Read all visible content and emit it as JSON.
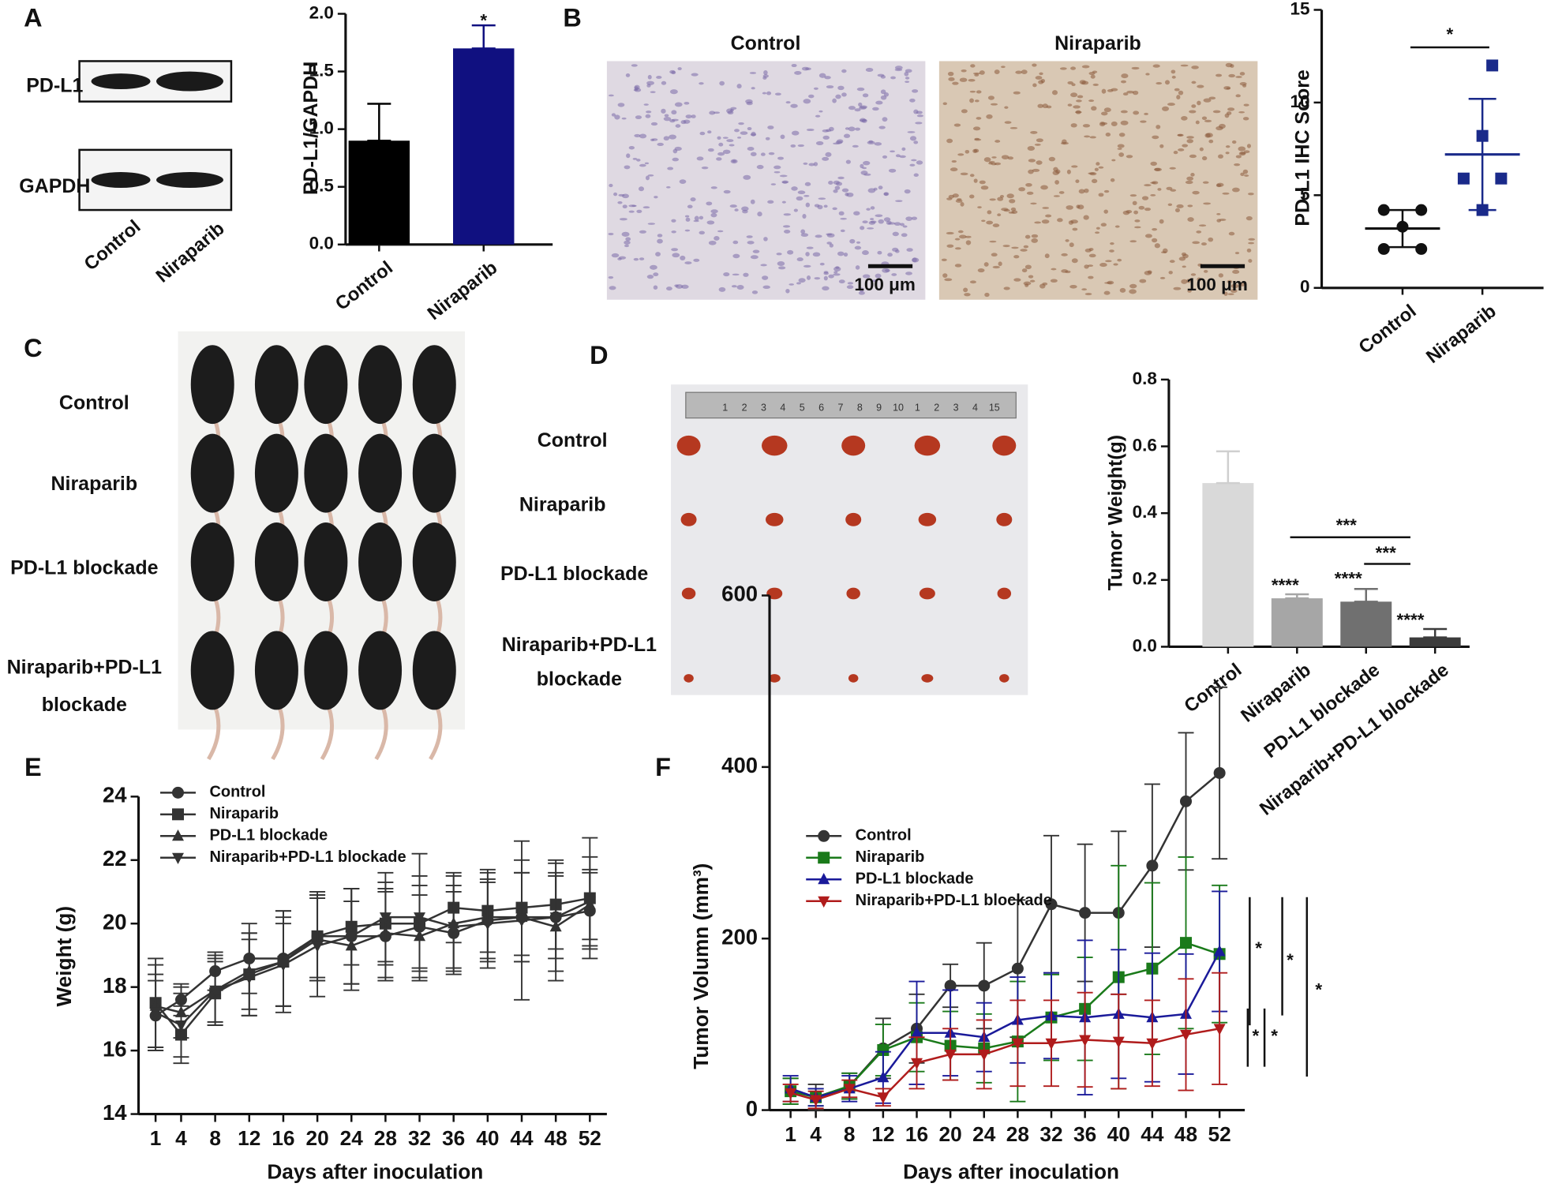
{
  "chart_data": [
    {
      "type": "bar",
      "categories": [
        "Control",
        "Niraparib"
      ],
      "values": [
        0.9,
        1.7
      ],
      "errors": [
        0.32,
        0.2
      ],
      "colors": [
        "#000000",
        "#101080"
      ],
      "y_label": "PD-L1/GAPDH",
      "ylim": [
        0,
        2
      ],
      "yticks": [
        {
          "value": 0,
          "label": "0.0"
        },
        0.5,
        {
          "value": 1,
          "label": "1.0"
        },
        1.5,
        {
          "value": 2,
          "label": "2.0"
        }
      ],
      "annotations": [
        "*"
      ]
    },
    {
      "type": "dot",
      "categories": [
        "Control",
        "Niraparib"
      ],
      "points": [
        [
          4.2,
          4.2,
          3.3,
          2.1,
          2.1
        ],
        [
          12,
          8.2,
          5.9,
          5.9,
          4.2
        ]
      ],
      "means": [
        3.2,
        7.2
      ],
      "sds": [
        1.0,
        3.0
      ],
      "colors": [
        "#111111",
        "#1a2a8a"
      ],
      "markers": [
        "circle",
        "square"
      ],
      "y_label": "PD-L1 IHC Score",
      "ylim": [
        0,
        15
      ],
      "yticks": [
        0,
        5,
        10,
        15
      ],
      "annotations": [
        "*"
      ]
    },
    {
      "type": "bar",
      "categories": [
        "Control",
        "Niraparib",
        "PD-L1 blockade",
        "Niraparib+PD-L1 blockade"
      ],
      "values": [
        0.49,
        0.145,
        0.135,
        0.028
      ],
      "errors": [
        0.095,
        0.012,
        0.038,
        0.025
      ],
      "colors": [
        "#d9d9d9",
        "#a6a6a6",
        "#707070",
        "#3c3c3c"
      ],
      "y_label": "Tumor Weight(g)",
      "ylim": [
        0,
        0.8
      ],
      "yticks": [
        {
          "value": 0,
          "label": "0.0"
        },
        0.2,
        0.4,
        0.6,
        0.8
      ],
      "annotations": [
        "****",
        "****",
        "****",
        "***",
        "***"
      ]
    },
    {
      "type": "line",
      "x": [
        1,
        4,
        8,
        12,
        16,
        20,
        24,
        28,
        32,
        36,
        40,
        44,
        48,
        52
      ],
      "xticks": [
        1,
        4,
        8,
        12,
        16,
        20,
        24,
        28,
        32,
        36,
        40,
        44,
        48,
        52
      ],
      "xlim": [
        -1,
        54
      ],
      "x_label": "Days after inoculation",
      "y_label": "Weight (g)",
      "ylim": [
        14,
        24
      ],
      "yticks": [
        14,
        16,
        18,
        20,
        22,
        24
      ],
      "series": [
        {
          "name": "Control",
          "color": "#333333",
          "marker": "circle",
          "values": [
            17.1,
            17.6,
            18.5,
            18.9,
            18.9,
            19.6,
            19.6,
            19.6,
            19.9,
            19.7,
            20.1,
            20.2,
            20.2,
            20.4
          ],
          "errors": [
            1.1,
            0.5,
            0.6,
            1.1,
            1.5,
            1.3,
            1.5,
            1.4,
            1.3,
            1.3,
            1.2,
            1.4,
            1.3,
            1.2
          ]
        },
        {
          "name": "Niraparib",
          "color": "#333333",
          "marker": "square",
          "values": [
            17.5,
            16.5,
            17.8,
            18.4,
            18.8,
            19.6,
            19.9,
            20.0,
            20.0,
            20.5,
            20.4,
            20.5,
            20.6,
            20.8
          ],
          "errors": [
            1.4,
            0.9,
            1.0,
            1.3,
            1.6,
            1.4,
            1.2,
            1.3,
            1.5,
            1.1,
            1.3,
            1.5,
            1.4,
            1.9
          ]
        },
        {
          "name": "PD-L1 blockade",
          "color": "#333333",
          "marker": "triangle",
          "values": [
            17.4,
            17.2,
            17.9,
            18.5,
            18.8,
            19.5,
            19.3,
            19.7,
            19.6,
            20.0,
            20.2,
            20.2,
            19.9,
            20.6
          ],
          "errors": [
            1.3,
            0.8,
            1.0,
            1.2,
            1.4,
            1.3,
            1.4,
            1.4,
            1.3,
            1.5,
            1.4,
            1.4,
            1.7,
            1.1
          ]
        },
        {
          "name": "Niraparib+PD-L1 blockade",
          "color": "#333333",
          "marker": "triangle-down",
          "values": [
            17.2,
            16.8,
            17.9,
            18.3,
            18.7,
            19.3,
            19.6,
            20.2,
            20.2,
            19.9,
            20.0,
            20.1,
            20.2,
            20.7
          ],
          "errors": [
            1.2,
            1.0,
            1.1,
            1.2,
            1.3,
            1.6,
            1.5,
            1.4,
            2.0,
            1.3,
            1.4,
            2.5,
            1.7,
            1.4
          ]
        }
      ]
    },
    {
      "type": "line",
      "x": [
        1,
        4,
        8,
        12,
        16,
        20,
        24,
        28,
        32,
        36,
        40,
        44,
        48,
        52
      ],
      "xticks": [
        1,
        4,
        8,
        12,
        16,
        20,
        24,
        28,
        32,
        36,
        40,
        44,
        48,
        52
      ],
      "xlim": [
        -1.5,
        55
      ],
      "x_label": "Days after inoculation",
      "y_label": "Tumor Volumn (mm³)",
      "ylim": [
        0,
        600
      ],
      "yticks": [
        0,
        200,
        400,
        600
      ],
      "annotations": [
        "*",
        "*",
        "*",
        "*",
        "*"
      ],
      "series": [
        {
          "name": "Control",
          "color": "#333333",
          "marker": "circle",
          "values": [
            22,
            15,
            28,
            72,
            95,
            145,
            145,
            165,
            240,
            230,
            230,
            285,
            360,
            393
          ],
          "errors": [
            15,
            15,
            15,
            35,
            40,
            25,
            50,
            80,
            80,
            80,
            95,
            95,
            80,
            100
          ]
        },
        {
          "name": "Niraparib",
          "color": "#1a7a1a",
          "marker": "square",
          "values": [
            22,
            15,
            28,
            70,
            85,
            75,
            72,
            80,
            108,
            118,
            155,
            165,
            195,
            182
          ],
          "errors": [
            15,
            10,
            15,
            30,
            40,
            40,
            40,
            70,
            50,
            60,
            130,
            100,
            100,
            80
          ]
        },
        {
          "name": "PD-L1 blockade",
          "color": "#1a1a9a",
          "marker": "triangle",
          "values": [
            25,
            15,
            25,
            38,
            90,
            90,
            85,
            105,
            110,
            108,
            112,
            108,
            112,
            185
          ],
          "errors": [
            15,
            10,
            15,
            30,
            60,
            50,
            40,
            50,
            50,
            90,
            75,
            75,
            70,
            70
          ]
        },
        {
          "name": "Niraparib+PD-L1 blockade",
          "color": "#b01c1c",
          "marker": "triangle-down",
          "values": [
            20,
            12,
            25,
            15,
            55,
            65,
            65,
            78,
            78,
            82,
            80,
            78,
            88,
            95
          ],
          "errors": [
            10,
            10,
            10,
            10,
            30,
            30,
            40,
            50,
            50,
            55,
            55,
            50,
            65,
            65
          ]
        }
      ]
    }
  ],
  "figure": {
    "panel_labels": [
      "A",
      "B",
      "C",
      "D",
      "E",
      "F"
    ],
    "blot": {
      "rows": [
        "PD-L1",
        "GAPDH"
      ],
      "lanes": [
        "Control",
        "Niraparib"
      ]
    },
    "ihc": {
      "titles": [
        "Control",
        "Niraparib"
      ],
      "scale_bars": [
        "100 μm",
        "100 μm"
      ]
    },
    "mice": {
      "groups": [
        [
          "Control"
        ],
        [
          "Niraparib"
        ],
        [
          "PD-L1 blockade"
        ],
        [
          "Niraparib+PD-L1",
          "blockade"
        ]
      ]
    },
    "tumors": {
      "groups": [
        [
          "Control"
        ],
        [
          "Niraparib"
        ],
        [
          "PD-L1 blockade"
        ],
        [
          "Niraparib+PD-L1",
          "blockade"
        ]
      ],
      "ruler": [
        "1",
        "2",
        "3",
        "4",
        "5",
        "6",
        "7",
        "8",
        "9",
        "10",
        "1",
        "2",
        "3",
        "4",
        "15"
      ]
    }
  }
}
